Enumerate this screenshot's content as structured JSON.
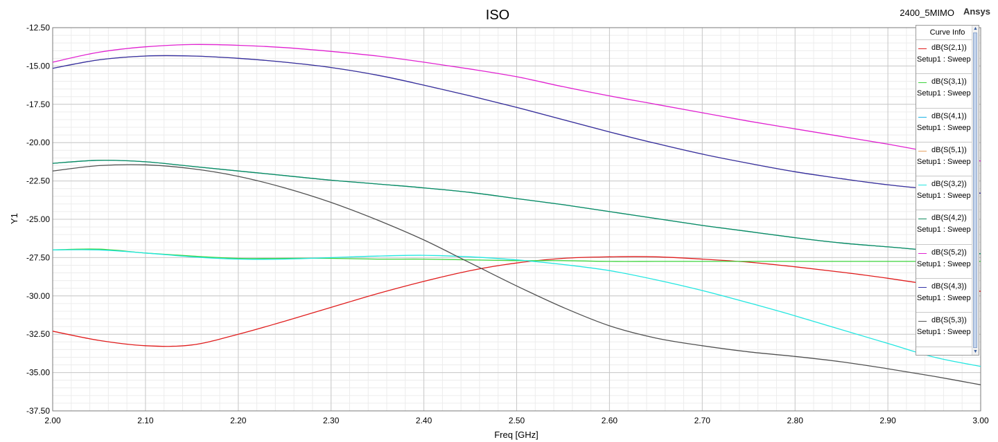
{
  "title": "ISO",
  "project_name": "2400_5MIMO",
  "brand": "Ansys",
  "legend": {
    "title": "Curve Info",
    "items": [
      {
        "name": "dB(S(2,1))",
        "sub": "Setup1 : Sweep",
        "color": "#e01c1c"
      },
      {
        "name": "dB(S(3,1))",
        "sub": "Setup1 : Sweep",
        "color": "#3ad33a"
      },
      {
        "name": "dB(S(4,1))",
        "sub": "Setup1 : Sweep",
        "color": "#1ab3e6"
      },
      {
        "name": "dB(S(5,1))",
        "sub": "Setup1 : Sweep",
        "color": "#e6a060"
      },
      {
        "name": "dB(S(3,2))",
        "sub": "Setup1 : Sweep",
        "color": "#22e6e0"
      },
      {
        "name": "dB(S(4,2))",
        "sub": "Setup1 : Sweep",
        "color": "#0e8a5c"
      },
      {
        "name": "dB(S(5,2))",
        "sub": "Setup1 : Sweep",
        "color": "#e020d0"
      },
      {
        "name": "dB(S(4,3))",
        "sub": "Setup1 : Sweep",
        "color": "#3030a8"
      },
      {
        "name": "dB(S(5,3))",
        "sub": "Setup1 : Sweep",
        "color": "#505050"
      }
    ]
  },
  "chart_data": {
    "type": "line",
    "title": "ISO",
    "xlabel": "Freq [GHz]",
    "ylabel": "Y1",
    "xlim": [
      2.0,
      3.0
    ],
    "ylim": [
      -37.5,
      -12.5
    ],
    "x_ticks": [
      2.0,
      2.1,
      2.2,
      2.3,
      2.4,
      2.5,
      2.6,
      2.7,
      2.8,
      2.9,
      3.0
    ],
    "x_tick_labels": [
      "2.00",
      "2.10",
      "2.20",
      "2.30",
      "2.40",
      "2.50",
      "2.60",
      "2.70",
      "2.80",
      "2.90",
      "3.00"
    ],
    "y_ticks": [
      -12.5,
      -15.0,
      -17.5,
      -20.0,
      -22.5,
      -25.0,
      -27.5,
      -30.0,
      -32.5,
      -35.0,
      -37.5
    ],
    "y_tick_labels": [
      "-12.50",
      "-15.00",
      "-17.50",
      "-20.00",
      "-22.50",
      "-25.00",
      "-27.50",
      "-30.00",
      "-32.50",
      "-35.00",
      "-37.50"
    ],
    "grid": true,
    "legend_position": "top-right",
    "x": [
      2.0,
      2.05,
      2.1,
      2.15,
      2.2,
      2.25,
      2.3,
      2.35,
      2.4,
      2.45,
      2.5,
      2.55,
      2.6,
      2.65,
      2.7,
      2.75,
      2.8,
      2.85,
      2.9,
      2.95,
      3.0
    ],
    "series": [
      {
        "name": "dB(S(2,1))",
        "color": "#e01c1c",
        "values": [
          -32.3,
          -32.9,
          -33.25,
          -33.2,
          -32.5,
          -31.65,
          -30.75,
          -29.85,
          -29.05,
          -28.35,
          -27.85,
          -27.55,
          -27.45,
          -27.45,
          -27.6,
          -27.8,
          -28.1,
          -28.45,
          -28.85,
          -29.3,
          -29.7
        ]
      },
      {
        "name": "dB(S(3,1))",
        "color": "#3ad33a",
        "values": [
          -27.0,
          -26.95,
          -27.2,
          -27.4,
          -27.55,
          -27.55,
          -27.55,
          -27.6,
          -27.6,
          -27.65,
          -27.7,
          -27.7,
          -27.75,
          -27.75,
          -27.75,
          -27.75,
          -27.75,
          -27.75,
          -27.75,
          -27.75,
          -27.75
        ]
      },
      {
        "name": "dB(S(4,1))",
        "color": "#1ab3e6",
        "values": [
          -21.35,
          -21.15,
          -21.25,
          -21.55,
          -21.85,
          -22.15,
          -22.45,
          -22.7,
          -22.95,
          -23.25,
          -23.65,
          -24.05,
          -24.5,
          -24.95,
          -25.4,
          -25.8,
          -26.2,
          -26.55,
          -26.8,
          -27.05,
          -27.25
        ]
      },
      {
        "name": "dB(S(5,1))",
        "color": "#e6a060",
        "values": [
          -15.15,
          -14.6,
          -14.35,
          -14.35,
          -14.5,
          -14.75,
          -15.1,
          -15.6,
          -16.25,
          -16.95,
          -17.7,
          -18.5,
          -19.3,
          -20.05,
          -20.75,
          -21.35,
          -21.9,
          -22.35,
          -22.75,
          -23.05,
          -23.3
        ]
      },
      {
        "name": "dB(S(3,2))",
        "color": "#22e6e0",
        "values": [
          -27.0,
          -27.0,
          -27.2,
          -27.45,
          -27.6,
          -27.6,
          -27.5,
          -27.4,
          -27.35,
          -27.45,
          -27.65,
          -27.95,
          -28.35,
          -28.95,
          -29.65,
          -30.45,
          -31.3,
          -32.2,
          -33.1,
          -34.0,
          -34.6
        ]
      },
      {
        "name": "dB(S(4,2))",
        "color": "#0e8a5c",
        "values": [
          -21.35,
          -21.15,
          -21.25,
          -21.55,
          -21.85,
          -22.15,
          -22.45,
          -22.7,
          -22.95,
          -23.25,
          -23.65,
          -24.05,
          -24.5,
          -24.95,
          -25.4,
          -25.8,
          -26.2,
          -26.55,
          -26.8,
          -27.05,
          -27.25
        ]
      },
      {
        "name": "dB(S(5,2))",
        "color": "#e020d0",
        "values": [
          -14.75,
          -14.1,
          -13.75,
          -13.6,
          -13.65,
          -13.8,
          -14.05,
          -14.35,
          -14.75,
          -15.2,
          -15.7,
          -16.35,
          -16.95,
          -17.5,
          -18.05,
          -18.6,
          -19.1,
          -19.6,
          -20.1,
          -20.65,
          -21.2
        ]
      },
      {
        "name": "dB(S(4,3))",
        "color": "#3030a8",
        "values": [
          -15.15,
          -14.6,
          -14.35,
          -14.35,
          -14.5,
          -14.75,
          -15.1,
          -15.6,
          -16.25,
          -16.95,
          -17.7,
          -18.5,
          -19.3,
          -20.05,
          -20.75,
          -21.35,
          -21.9,
          -22.35,
          -22.75,
          -23.05,
          -23.3
        ]
      },
      {
        "name": "dB(S(5,3))",
        "color": "#505050",
        "values": [
          -21.85,
          -21.5,
          -21.45,
          -21.7,
          -22.2,
          -22.95,
          -23.9,
          -25.05,
          -26.35,
          -27.85,
          -29.35,
          -30.75,
          -31.95,
          -32.75,
          -33.25,
          -33.65,
          -33.95,
          -34.3,
          -34.75,
          -35.25,
          -35.8
        ]
      }
    ]
  }
}
